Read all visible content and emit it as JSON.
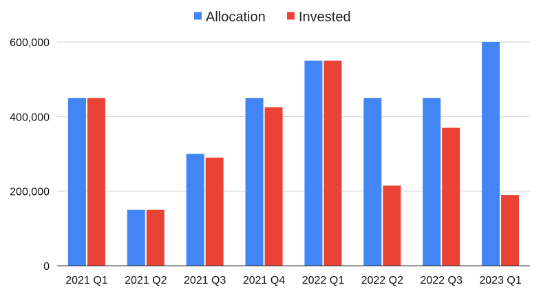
{
  "chart_data": {
    "type": "bar",
    "categories": [
      "2021 Q1",
      "2021 Q2",
      "2021 Q3",
      "2021 Q4",
      "2022 Q1",
      "2022 Q2",
      "2022 Q3",
      "2023 Q1"
    ],
    "series": [
      {
        "name": "Allocation",
        "color": "#4285F4",
        "values": [
          450000,
          150000,
          300000,
          450000,
          550000,
          450000,
          450000,
          600000
        ]
      },
      {
        "name": "Invested",
        "color": "#EA4335",
        "values": [
          450000,
          150000,
          290000,
          425000,
          550000,
          215000,
          370000,
          190000
        ]
      }
    ],
    "y_ticks": [
      "0",
      "200,000",
      "400,000",
      "600,000"
    ],
    "y_tick_values": [
      0,
      200000,
      400000,
      600000
    ],
    "ylim": [
      0,
      600000
    ],
    "grid": true,
    "legend_position": "top-center",
    "title": "",
    "xlabel": "",
    "ylabel": ""
  }
}
